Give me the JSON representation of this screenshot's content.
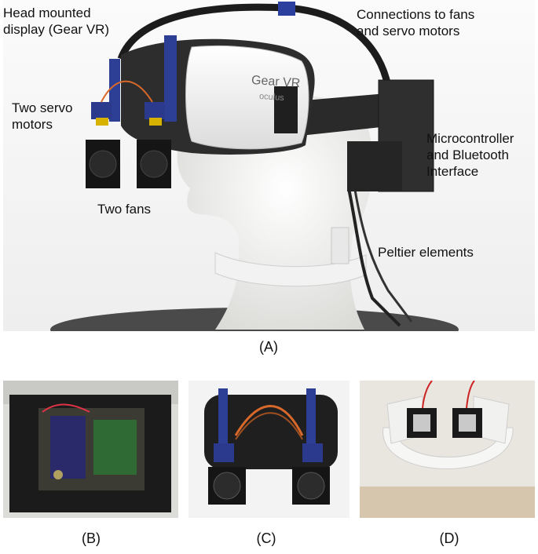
{
  "figure": {
    "panel_a": {
      "caption": "(A)",
      "headset_brand": "Gear VR",
      "headset_logo": "oculus",
      "labels": {
        "head_mounted_display": "Head mounted\ndisplay (Gear VR)",
        "connections": "Connections to fans\nand servo motors",
        "two_servo_motors": "Two servo\nmotors",
        "microcontroller": "Microcontroller\nand Bluetooth\nInterface",
        "two_fans": "Two fans",
        "peltier": "Peltier elements"
      }
    },
    "panel_b": {
      "caption": "(B)"
    },
    "panel_c": {
      "caption": "(C)"
    },
    "panel_d": {
      "caption": "(D)"
    }
  }
}
